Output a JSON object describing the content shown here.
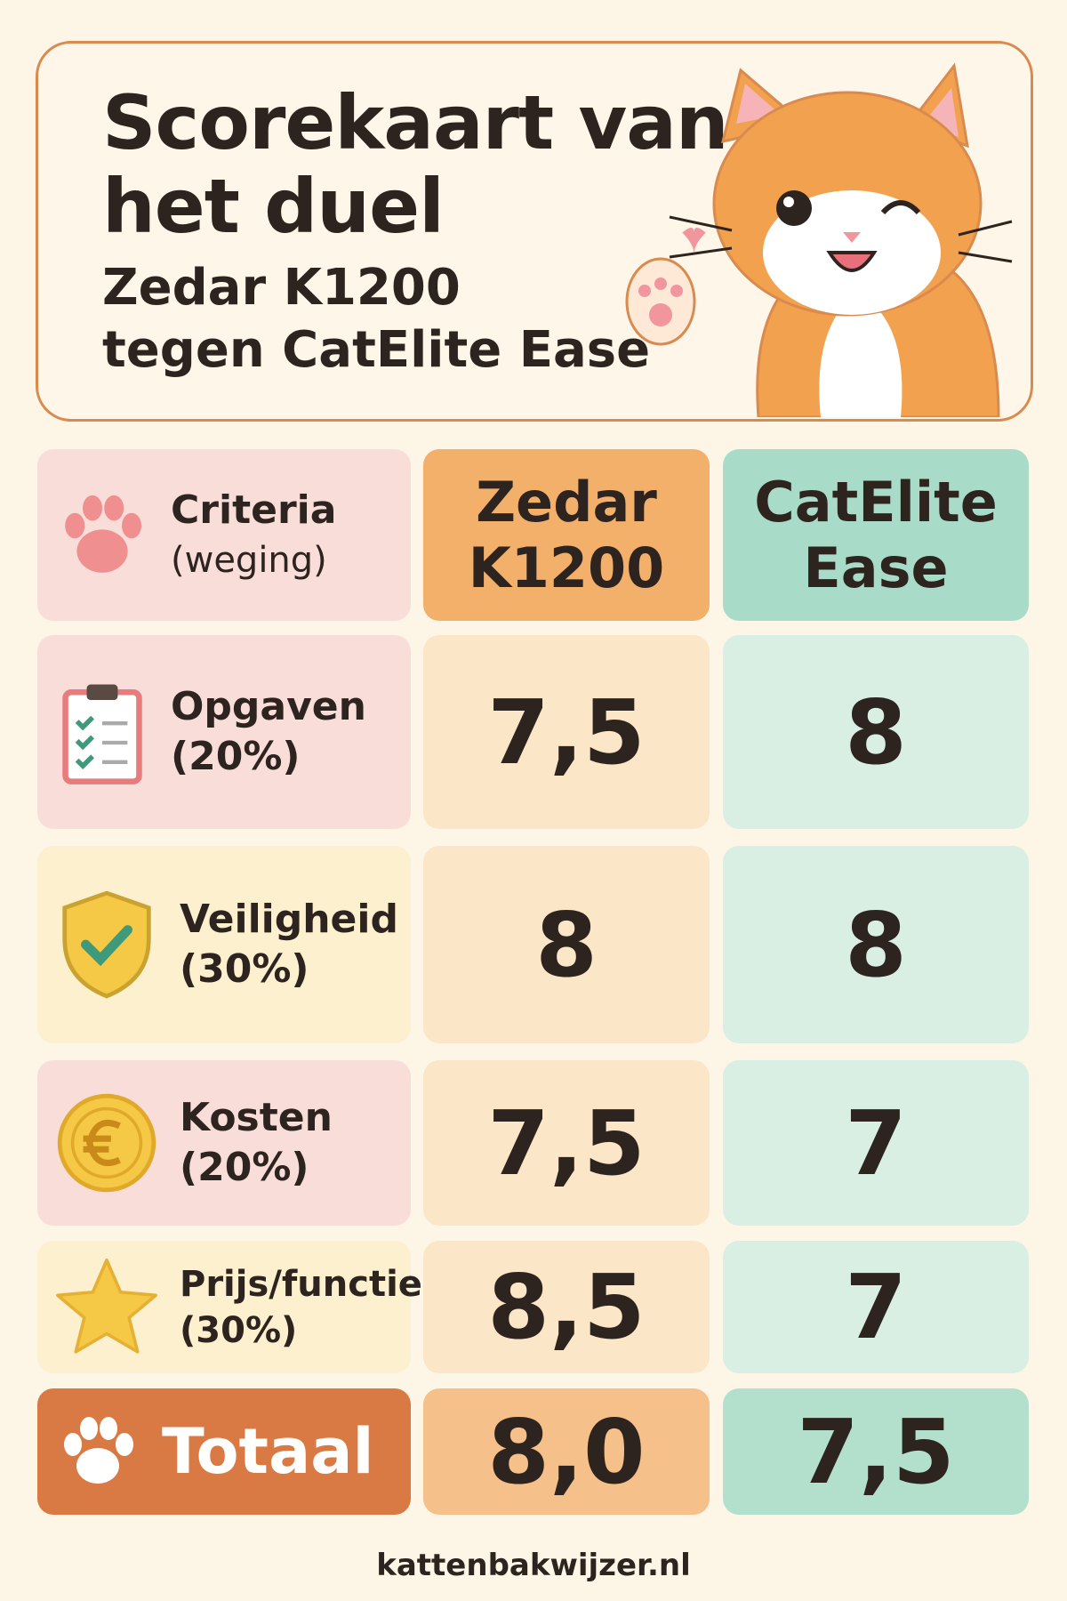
{
  "header": {
    "title_lines": [
      "Scorekaart van",
      "het duel"
    ],
    "subtitle_lines": [
      "Zedar K1200",
      "tegen CatElite Ease"
    ]
  },
  "table": {
    "head": {
      "criteria": "Criteria",
      "criteria_note": "(weging)",
      "products": [
        [
          "Zedar",
          "K1200"
        ],
        [
          "CatElite",
          "Ease"
        ]
      ]
    },
    "rows": [
      {
        "criterion": "Opgaven",
        "weight": "(20%)",
        "scores": [
          "7,5",
          "8"
        ]
      },
      {
        "criterion": "Veiligheid",
        "weight": "(30%)",
        "scores": [
          "8",
          "8"
        ]
      },
      {
        "criterion": "Kosten",
        "weight": "(20%)",
        "scores": [
          "7,5",
          "7"
        ]
      },
      {
        "criterion": "Prijs/functies",
        "weight": "(30%)",
        "scores": [
          "8,5",
          "7"
        ]
      }
    ],
    "total": {
      "label": "Totaal",
      "scores": [
        "8,0",
        "7,5"
      ]
    }
  },
  "footer": "kattenbakwijzer.nl"
}
